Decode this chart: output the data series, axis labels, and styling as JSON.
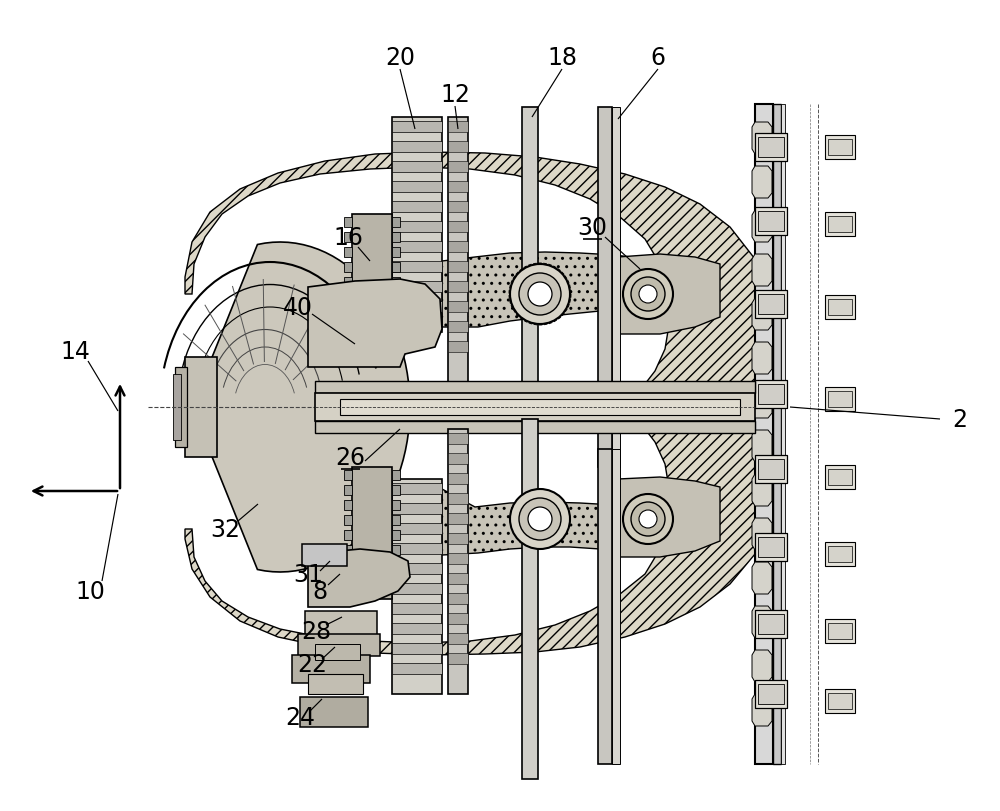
{
  "bg_color": "#ffffff",
  "line_color": "#000000",
  "gray_fill": "#c8c8c8",
  "dark_fill": "#404040",
  "medium_fill": "#888888",
  "hatch_fill": "#d0d0d0",
  "fig_width": 10.0,
  "fig_height": 8.12
}
